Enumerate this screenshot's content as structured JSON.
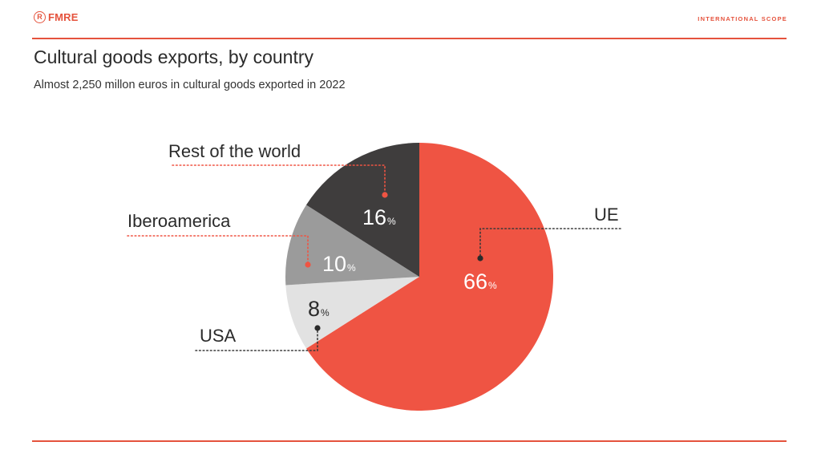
{
  "header": {
    "brand": "FMRE",
    "brand_mark": "R",
    "section_tag": "INTERNATIONAL SCOPE"
  },
  "title": "Cultural goods exports, by country",
  "subtitle": "Almost 2,250 millon euros in cultural goods exported in 2022",
  "colors": {
    "accent": "#e5533d",
    "ue": "#ef5443",
    "usa": "#e2e2e2",
    "iberoamerica": "#9b9b9b",
    "rest": "#3f3d3d",
    "dark_text": "#2b2b2b",
    "light_text": "#ffffff"
  },
  "chart_data": {
    "type": "pie",
    "title": "Cultural goods exports, by country",
    "unit": "%",
    "slices": [
      {
        "name": "UE",
        "value": 66,
        "label": "66",
        "unit": "%"
      },
      {
        "name": "USA",
        "value": 8,
        "label": "8",
        "unit": "%"
      },
      {
        "name": "Iberoamerica",
        "value": 10,
        "label": "10",
        "unit": "%"
      },
      {
        "name": "Rest of the world",
        "value": 16,
        "label": "16",
        "unit": "%"
      }
    ]
  }
}
